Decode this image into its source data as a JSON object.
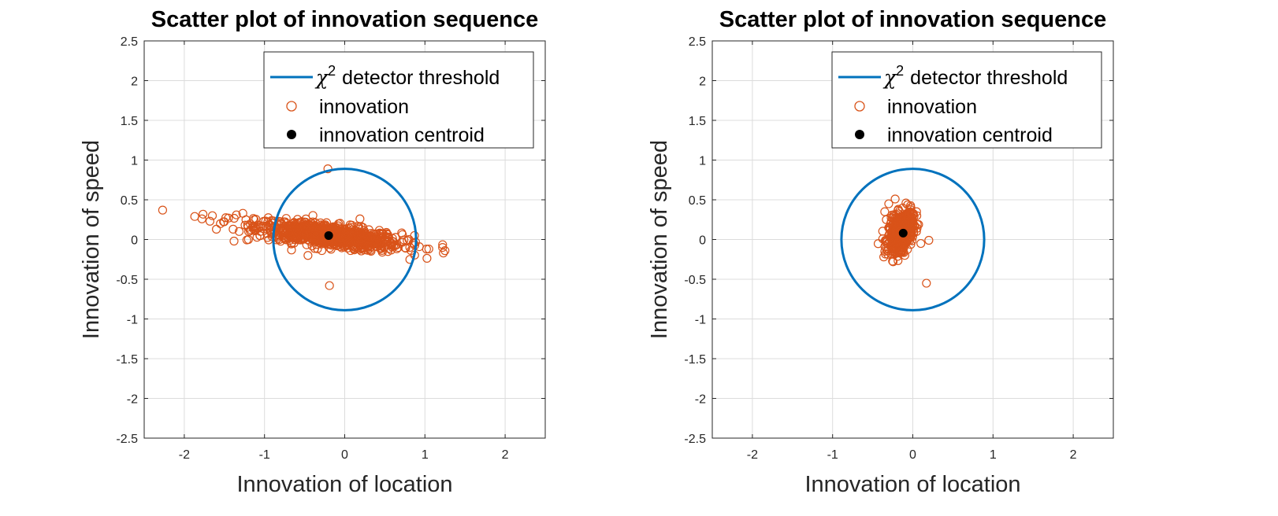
{
  "chart_data": [
    {
      "type": "scatter",
      "title": "Scatter plot of innovation sequence",
      "xlabel": "Innovation of location",
      "ylabel": "Innovation of speed",
      "xlim": [
        -2.5,
        2.5
      ],
      "ylim": [
        -2.5,
        2.5
      ],
      "xticks": [
        -2,
        -1,
        0,
        1,
        2
      ],
      "yticks": [
        -2.5,
        -2,
        -1.5,
        -1,
        -0.5,
        0,
        0.5,
        1,
        1.5,
        2,
        2.5
      ],
      "xtick_labels": [
        "-2",
        "-1",
        "0",
        "1",
        "2"
      ],
      "ytick_labels": [
        "-2.5",
        "-2",
        "-1.5",
        "-1",
        "-0.5",
        "0",
        "0.5",
        "1",
        "1.5",
        "2",
        "2.5"
      ],
      "grid": true,
      "legend_position": "top-right",
      "legend": {
        "threshold_symbol": "χ",
        "threshold_superscript": "2",
        "threshold_text": "detector threshold",
        "innovation": "innovation",
        "centroid": "innovation centroid"
      },
      "threshold_circle": {
        "center": [
          0,
          0
        ],
        "radius": 0.89,
        "color": "#0072BD"
      },
      "innovation_color": "#D95319",
      "centroid_color": "#000000",
      "centroid": [
        -0.2,
        0.05
      ],
      "innovation_cloud": {
        "center": [
          -0.2,
          0.05
        ],
        "x_sd": 0.45,
        "slope": -0.12,
        "spread_sd": 0.07,
        "count": 900
      },
      "innovation_outliers": [
        [
          -2.27,
          0.37
        ],
        [
          -1.87,
          0.29
        ],
        [
          -1.78,
          0.26
        ],
        [
          -1.68,
          0.23
        ],
        [
          -1.65,
          0.3
        ],
        [
          -1.6,
          0.13
        ],
        [
          -1.55,
          0.2
        ],
        [
          -1.45,
          0.27
        ],
        [
          -1.35,
          0.31
        ],
        [
          -1.27,
          0.33
        ],
        [
          -1.38,
          -0.02
        ],
        [
          -1.2,
          0.0
        ],
        [
          -0.21,
          0.89
        ],
        [
          -0.19,
          -0.58
        ],
        [
          0.19,
          0.26
        ],
        [
          0.87,
          0.05
        ],
        [
          0.93,
          -0.09
        ],
        [
          1.02,
          -0.12
        ],
        [
          1.22,
          -0.1
        ],
        [
          1.25,
          -0.14
        ],
        [
          1.23,
          -0.17
        ]
      ]
    },
    {
      "type": "scatter",
      "title": "Scatter plot of innovation sequence",
      "xlabel": "Innovation of location",
      "ylabel": "Innovation of speed",
      "xlim": [
        -2.5,
        2.5
      ],
      "ylim": [
        -2.5,
        2.5
      ],
      "xticks": [
        -2,
        -1,
        0,
        1,
        2
      ],
      "yticks": [
        -2.5,
        -2,
        -1.5,
        -1,
        -0.5,
        0,
        0.5,
        1,
        1.5,
        2,
        2.5
      ],
      "xtick_labels": [
        "-2",
        "-1",
        "0",
        "1",
        "2"
      ],
      "ytick_labels": [
        "-2.5",
        "-2",
        "-1.5",
        "-1",
        "-0.5",
        "0",
        "0.5",
        "1",
        "1.5",
        "2",
        "2.5"
      ],
      "grid": true,
      "legend_position": "top-right",
      "legend": {
        "threshold_symbol": "χ",
        "threshold_superscript": "2",
        "threshold_text": "detector threshold",
        "innovation": "innovation",
        "centroid": "innovation centroid"
      },
      "threshold_circle": {
        "center": [
          0,
          0
        ],
        "radius": 0.89,
        "color": "#0072BD"
      },
      "innovation_color": "#D95319",
      "centroid_color": "#000000",
      "centroid": [
        -0.12,
        0.08
      ],
      "innovation_cloud": {
        "center": [
          -0.15,
          0.1
        ],
        "x_sd": 0.075,
        "slope": 0.6,
        "spread_sd": 0.11,
        "count": 600
      },
      "innovation_outliers": [
        [
          -0.22,
          0.51
        ],
        [
          -0.3,
          0.45
        ],
        [
          -0.35,
          0.35
        ],
        [
          -0.33,
          0.25
        ],
        [
          0.05,
          0.3
        ],
        [
          0.1,
          -0.05
        ],
        [
          0.2,
          -0.01
        ],
        [
          0.17,
          -0.55
        ],
        [
          -0.1,
          -0.2
        ],
        [
          -0.22,
          -0.15
        ]
      ]
    }
  ]
}
